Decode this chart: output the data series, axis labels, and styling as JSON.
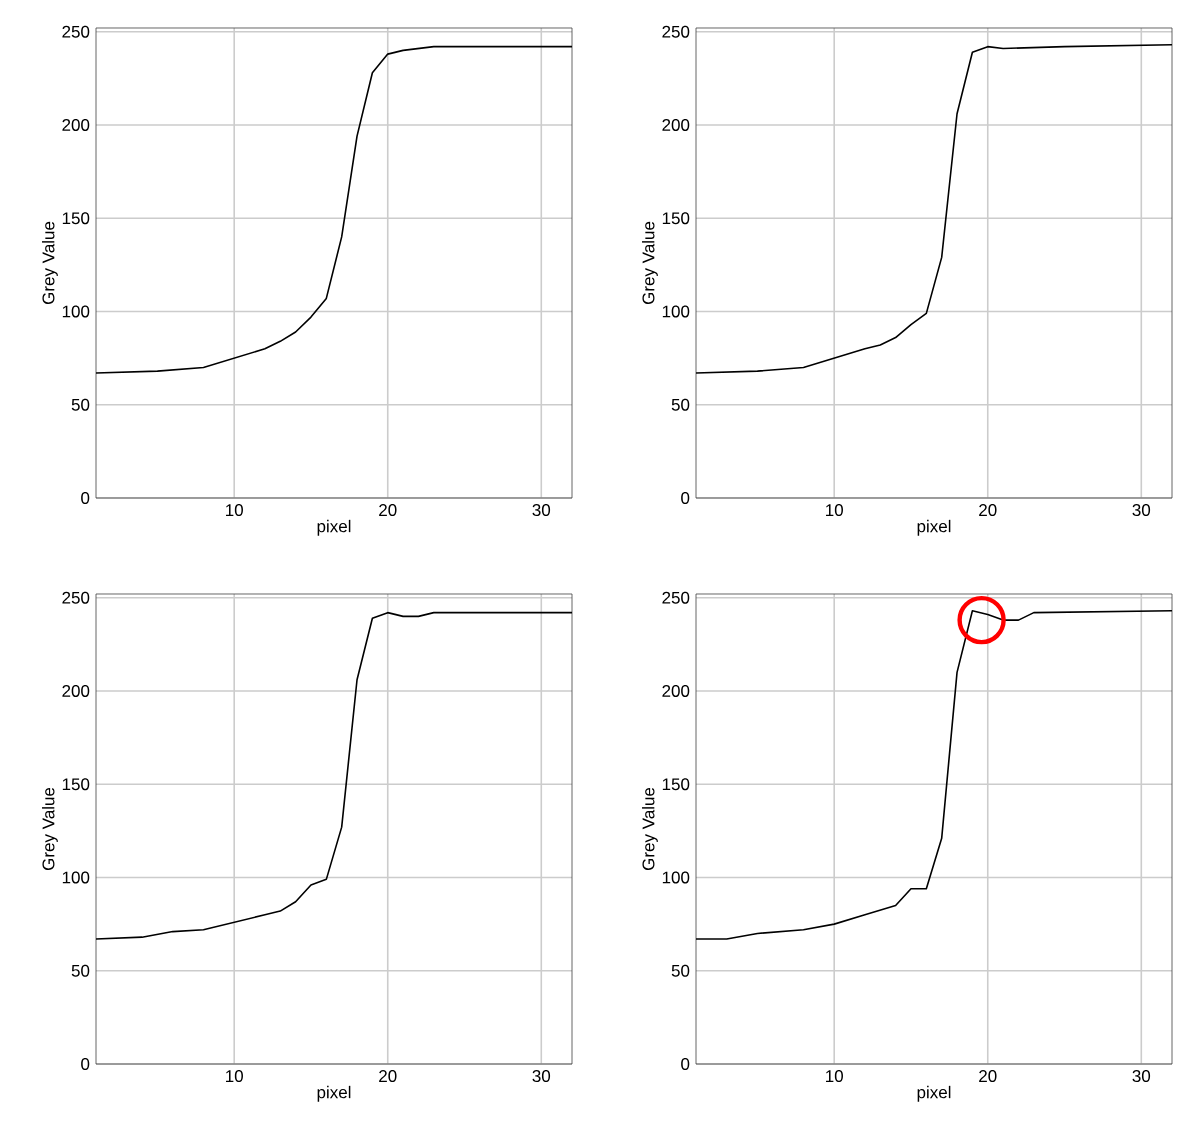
{
  "chart_data": [
    {
      "type": "line",
      "xlabel": "pixel",
      "ylabel": "Grey Value",
      "xlim": [
        1,
        32
      ],
      "ylim": [
        0,
        252
      ],
      "xticks": [
        10,
        20,
        30
      ],
      "yticks": [
        0,
        50,
        100,
        150,
        200,
        250
      ],
      "grid": true,
      "series": [
        {
          "color": "#000000",
          "x": [
            1,
            5,
            8,
            10,
            12,
            13,
            14,
            15,
            16,
            17,
            18,
            19,
            20,
            21,
            23,
            32
          ],
          "values": [
            67,
            68,
            70,
            75,
            80,
            84,
            89,
            97,
            107,
            140,
            194,
            228,
            238,
            240,
            242,
            242
          ]
        }
      ]
    },
    {
      "type": "line",
      "xlabel": "pixel",
      "ylabel": "Grey Value",
      "xlim": [
        1,
        32
      ],
      "ylim": [
        0,
        252
      ],
      "xticks": [
        10,
        20,
        30
      ],
      "yticks": [
        0,
        50,
        100,
        150,
        200,
        250
      ],
      "grid": true,
      "series": [
        {
          "color": "#000000",
          "x": [
            1,
            5,
            8,
            10,
            12,
            13,
            14,
            15,
            16,
            17,
            18,
            19,
            20,
            21,
            25,
            32
          ],
          "values": [
            67,
            68,
            70,
            75,
            80,
            82,
            86,
            93,
            99,
            129,
            206,
            239,
            242,
            241,
            242,
            243
          ]
        }
      ]
    },
    {
      "type": "line",
      "xlabel": "pixel",
      "ylabel": "Grey Value",
      "xlim": [
        1,
        32
      ],
      "ylim": [
        0,
        252
      ],
      "xticks": [
        10,
        20,
        30
      ],
      "yticks": [
        0,
        50,
        100,
        150,
        200,
        250
      ],
      "grid": true,
      "series": [
        {
          "color": "#000000",
          "x": [
            1,
            4,
            6,
            8,
            10,
            12,
            13,
            14,
            15,
            16,
            17,
            18,
            19,
            20,
            21,
            22,
            23,
            32
          ],
          "values": [
            67,
            68,
            71,
            72,
            76,
            80,
            82,
            87,
            96,
            99,
            127,
            206,
            239,
            242,
            240,
            240,
            242,
            242
          ]
        }
      ]
    },
    {
      "type": "line",
      "xlabel": "pixel",
      "ylabel": "Grey Value",
      "xlim": [
        1,
        32
      ],
      "ylim": [
        0,
        252
      ],
      "xticks": [
        10,
        20,
        30
      ],
      "yticks": [
        0,
        50,
        100,
        150,
        200,
        250
      ],
      "grid": true,
      "series": [
        {
          "color": "#000000",
          "x": [
            1,
            3,
            5,
            8,
            10,
            12,
            14,
            15,
            16,
            17,
            18,
            19,
            20,
            21,
            22,
            23,
            32
          ],
          "values": [
            67,
            67,
            70,
            72,
            75,
            80,
            85,
            94,
            94,
            121,
            210,
            243,
            241,
            238,
            238,
            242,
            243
          ]
        }
      ]
    }
  ]
}
